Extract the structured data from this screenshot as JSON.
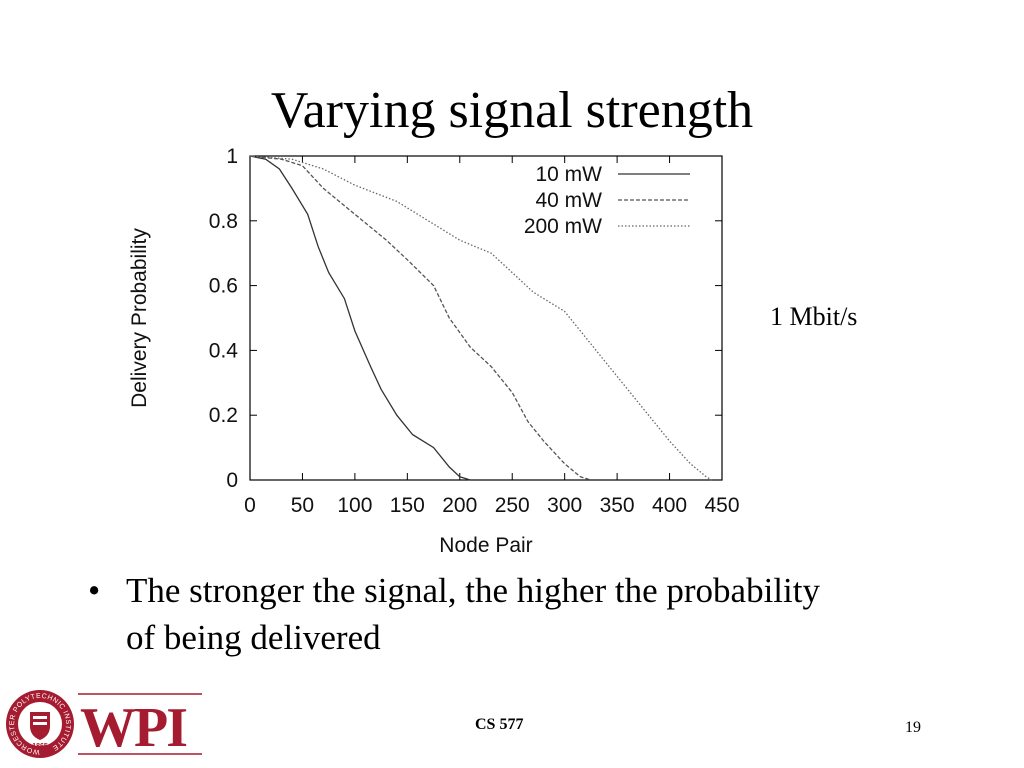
{
  "slide": {
    "title": "Varying signal strength",
    "side_note": "1 Mbit/s",
    "bullet": "The stronger the signal, the higher the probability of being delivered",
    "bullet_marker": "•",
    "footer_course": "CS 577",
    "page_number": "19",
    "logo": {
      "text": "WPI",
      "seal_text": "WORCESTER POLYTECHNIC INSTITUTE",
      "seal_year": "1865",
      "color": "#a51c30"
    }
  },
  "chart_data": {
    "type": "line",
    "title": "",
    "xlabel": "Node Pair",
    "ylabel": "Delivery Probability",
    "xlim": [
      0,
      450
    ],
    "ylim": [
      0,
      1
    ],
    "xticks": [
      0,
      50,
      100,
      150,
      200,
      250,
      300,
      350,
      400,
      450
    ],
    "yticks": [
      0,
      0.2,
      0.4,
      0.6,
      0.8,
      1
    ],
    "grid": false,
    "legend_position": "top-right",
    "series": [
      {
        "name": "10 mW",
        "style": "solid",
        "color": "#333333",
        "points": [
          [
            0,
            1
          ],
          [
            15,
            0.99
          ],
          [
            28,
            0.96
          ],
          [
            40,
            0.9
          ],
          [
            55,
            0.82
          ],
          [
            65,
            0.72
          ],
          [
            75,
            0.64
          ],
          [
            90,
            0.56
          ],
          [
            100,
            0.46
          ],
          [
            115,
            0.35
          ],
          [
            125,
            0.28
          ],
          [
            140,
            0.2
          ],
          [
            155,
            0.14
          ],
          [
            175,
            0.1
          ],
          [
            190,
            0.04
          ],
          [
            200,
            0.01
          ],
          [
            210,
            0
          ]
        ]
      },
      {
        "name": "40 mW",
        "style": "dashed",
        "color": "#555555",
        "points": [
          [
            0,
            1
          ],
          [
            30,
            0.99
          ],
          [
            50,
            0.97
          ],
          [
            70,
            0.9
          ],
          [
            100,
            0.82
          ],
          [
            130,
            0.74
          ],
          [
            150,
            0.68
          ],
          [
            175,
            0.6
          ],
          [
            190,
            0.5
          ],
          [
            210,
            0.41
          ],
          [
            230,
            0.35
          ],
          [
            250,
            0.27
          ],
          [
            265,
            0.18
          ],
          [
            280,
            0.12
          ],
          [
            300,
            0.05
          ],
          [
            315,
            0.01
          ],
          [
            325,
            0
          ]
        ]
      },
      {
        "name": "200 mW",
        "style": "dotted",
        "color": "#666666",
        "points": [
          [
            0,
            1
          ],
          [
            40,
            0.99
          ],
          [
            70,
            0.96
          ],
          [
            100,
            0.91
          ],
          [
            140,
            0.86
          ],
          [
            170,
            0.8
          ],
          [
            200,
            0.74
          ],
          [
            230,
            0.7
          ],
          [
            250,
            0.64
          ],
          [
            270,
            0.58
          ],
          [
            300,
            0.52
          ],
          [
            320,
            0.44
          ],
          [
            340,
            0.36
          ],
          [
            360,
            0.28
          ],
          [
            380,
            0.2
          ],
          [
            400,
            0.12
          ],
          [
            420,
            0.05
          ],
          [
            435,
            0.01
          ],
          [
            440,
            0
          ]
        ]
      }
    ]
  }
}
